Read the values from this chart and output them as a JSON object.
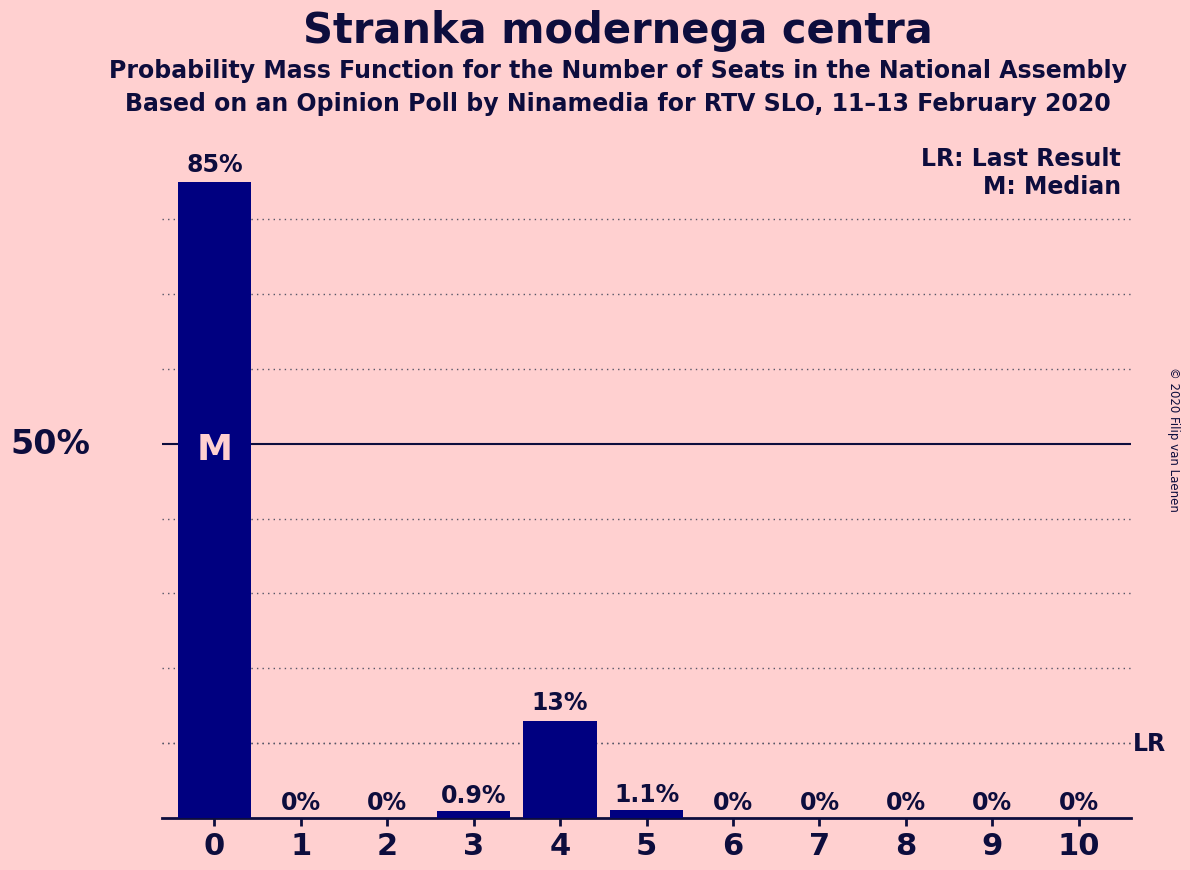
{
  "title": "Stranka modernega centra",
  "subtitle1": "Probability Mass Function for the Number of Seats in the National Assembly",
  "subtitle2": "Based on an Opinion Poll by Ninamedia for RTV SLO, 11–13 February 2020",
  "copyright": "© 2020 Filip van Laenen",
  "categories": [
    0,
    1,
    2,
    3,
    4,
    5,
    6,
    7,
    8,
    9,
    10
  ],
  "values": [
    85,
    0,
    0,
    0.9,
    13,
    1.1,
    0,
    0,
    0,
    0,
    0
  ],
  "bar_color": "#000080",
  "background_color": "#FFD0D0",
  "ylabel_50": "50%",
  "median_seat": 0,
  "lr_value": 10,
  "annotation_lr": "LR: Last Result",
  "annotation_m": "M: Median",
  "lr_label": "LR",
  "m_label": "M",
  "value_labels": [
    "85%",
    "0%",
    "0%",
    "0.9%",
    "13%",
    "1.1%",
    "0%",
    "0%",
    "0%",
    "0%",
    "0%"
  ],
  "ylim": [
    0,
    92
  ],
  "grid_levels": [
    10,
    20,
    30,
    40,
    50,
    60,
    70,
    80
  ],
  "title_fontsize": 30,
  "subtitle_fontsize": 17,
  "bar_text_fontsize": 17,
  "axis_fontsize": 20,
  "annotation_fontsize": 17,
  "text_color": "#0d0d3d"
}
